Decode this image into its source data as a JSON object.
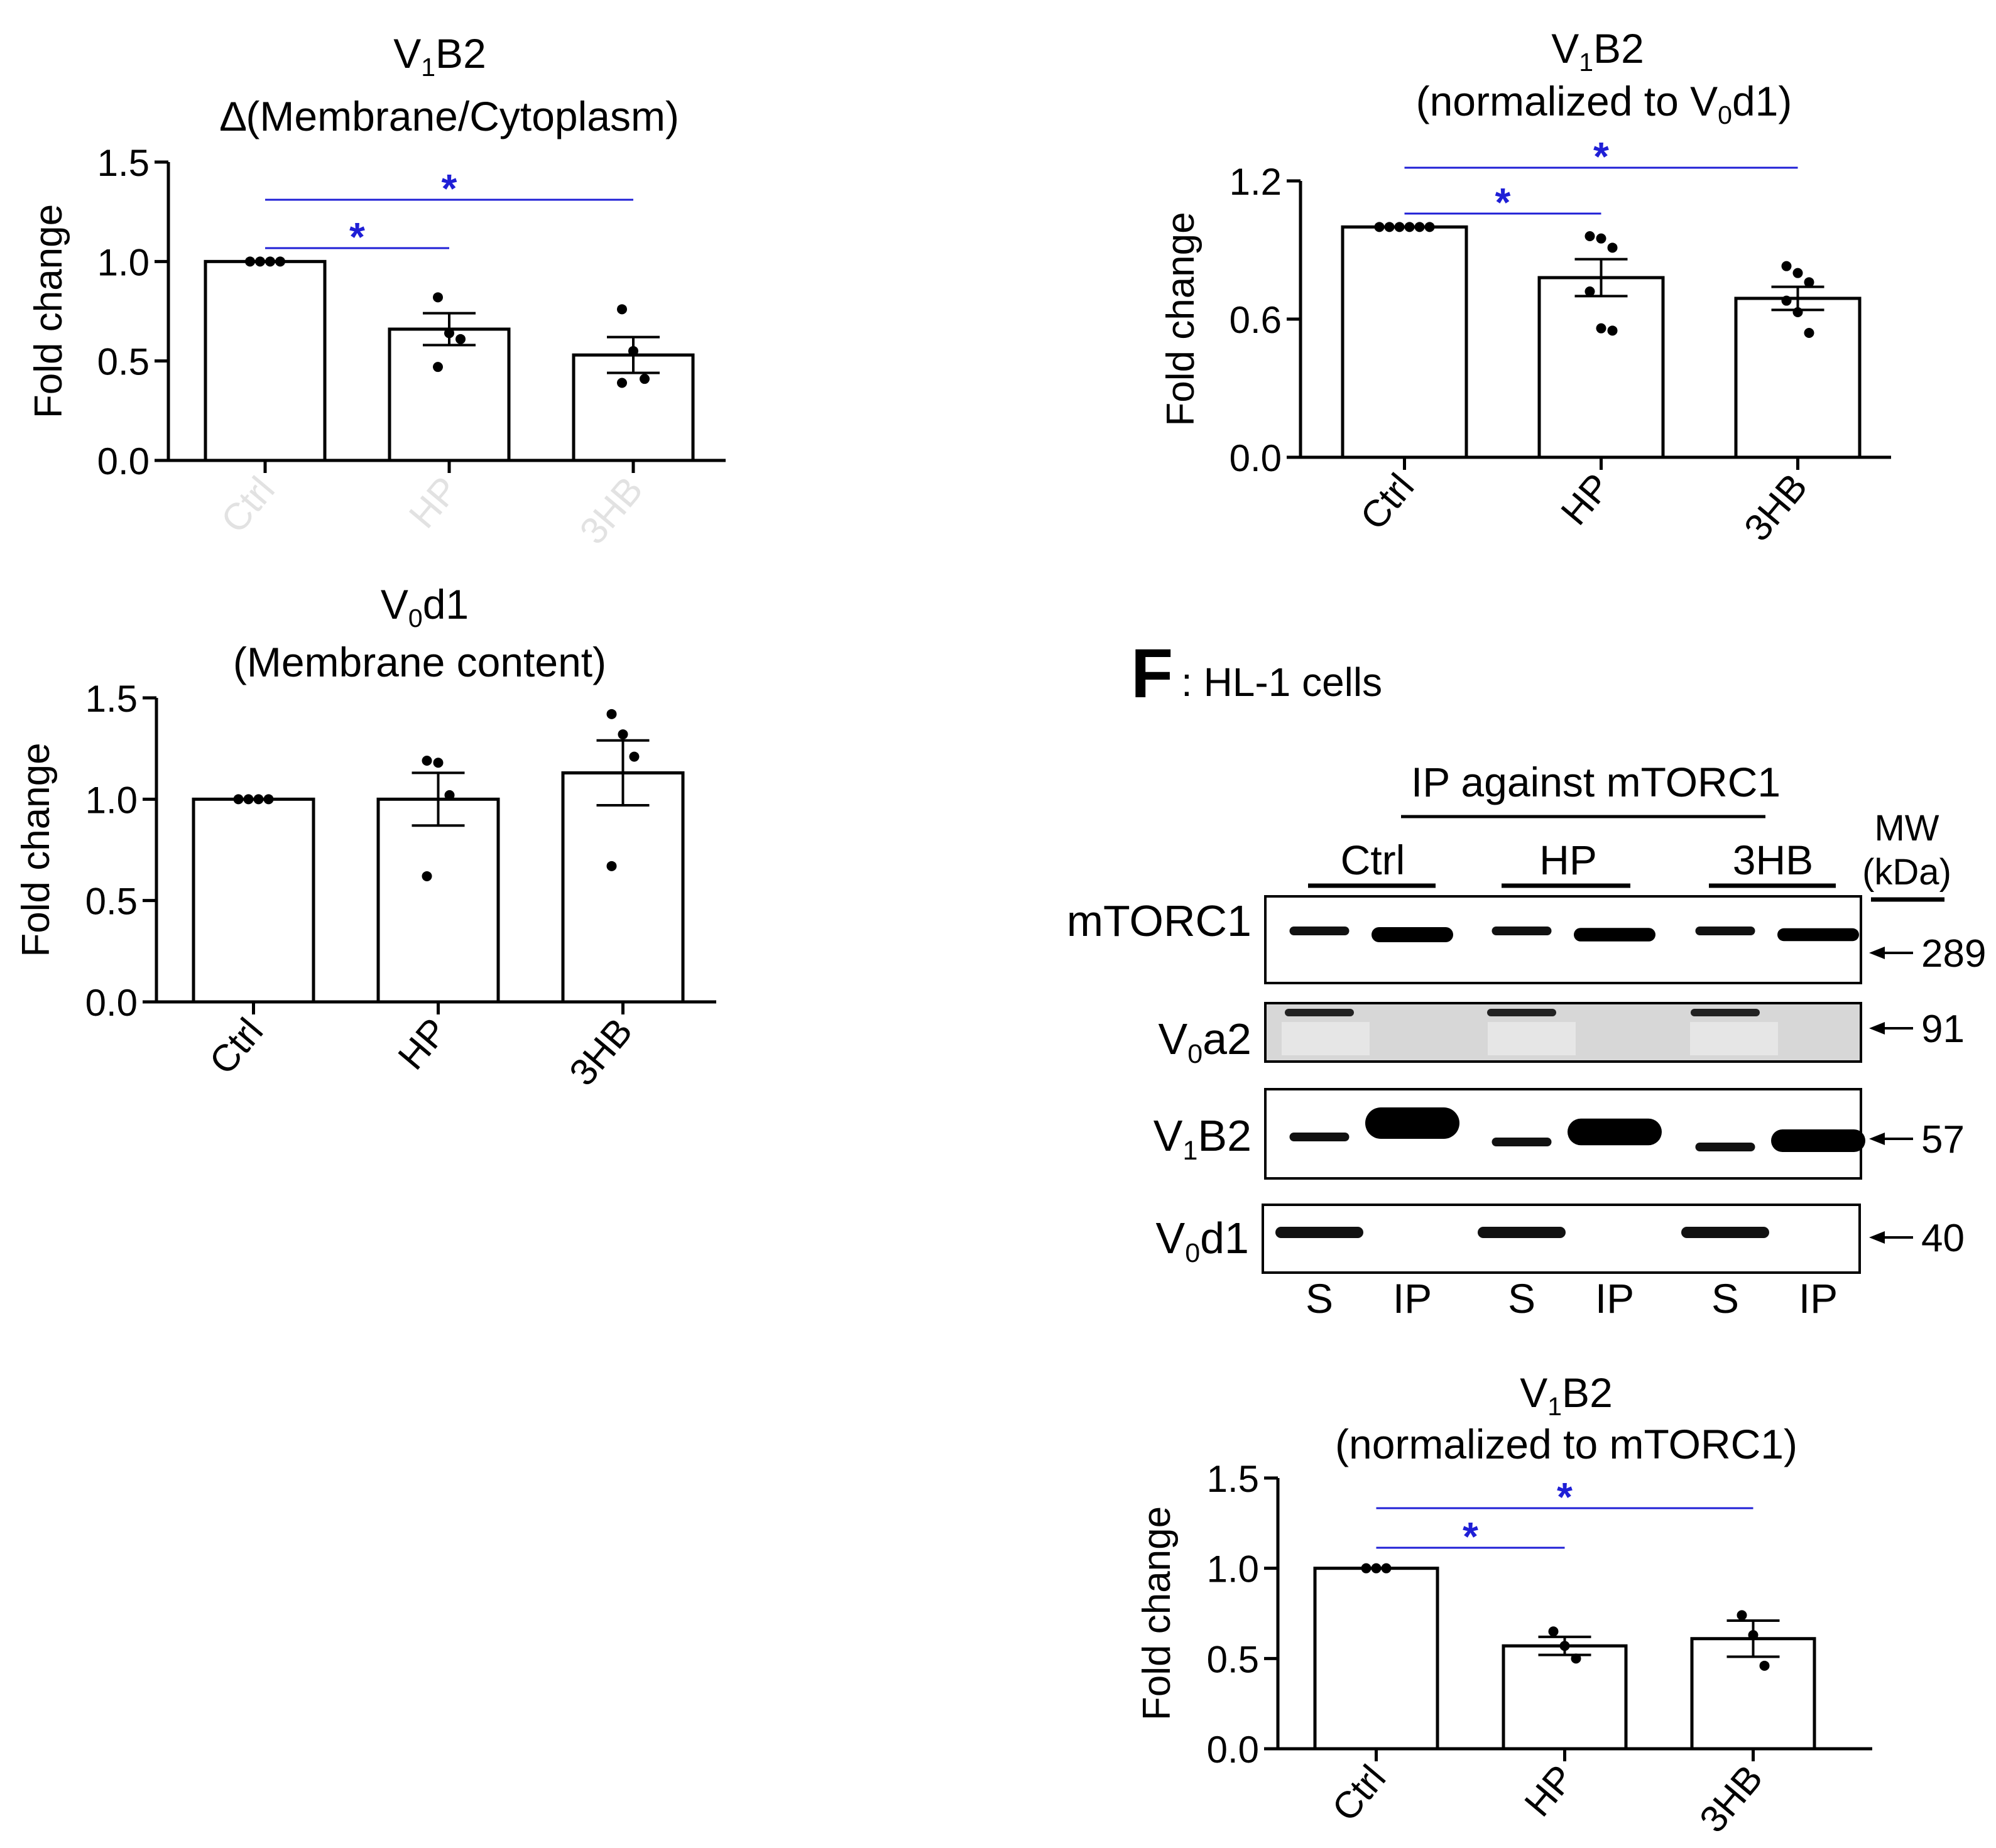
{
  "colors": {
    "significance": "#1f1fd6",
    "ink": "#000000",
    "bar_fill": "#ffffff",
    "ghost_tick": "#e2e2e2"
  },
  "chart_data": [
    {
      "id": "v1b2-membrane-cytoplasm",
      "type": "bar",
      "title": {
        "main": "V",
        "sub": "1",
        "rest": "B2"
      },
      "subtitle": "∆(Membrane/Cytoplasm)",
      "ylabel": "Fold change",
      "ylim": [
        0,
        1.5
      ],
      "yticks": [
        "0.0",
        "0.5",
        "1.0",
        "1.5"
      ],
      "categories": [
        "Ctrl",
        "HP",
        "3HB"
      ],
      "tick_labels_faint": true,
      "values": [
        1.0,
        0.66,
        0.53
      ],
      "sem": [
        0.0,
        0.08,
        0.09
      ],
      "points": [
        [
          1.0,
          1.0,
          1.0,
          1.0
        ],
        [
          0.82,
          0.64,
          0.61,
          0.47
        ],
        [
          0.76,
          0.55,
          0.41,
          0.39
        ]
      ],
      "significance": [
        {
          "from": "Ctrl",
          "to": "HP",
          "label": "*"
        },
        {
          "from": "Ctrl",
          "to": "3HB",
          "label": "*"
        }
      ]
    },
    {
      "id": "v1b2-normalized-v0d1",
      "type": "bar",
      "title": {
        "main": "V",
        "sub": "1",
        "rest": "B2"
      },
      "subtitle": {
        "main": "(normalized to V",
        "sub": "0",
        "rest": "d1)"
      },
      "ylabel": "Fold change",
      "ylim": [
        0,
        1.2
      ],
      "yticks": [
        "0.0",
        "0.6",
        "1.2"
      ],
      "categories": [
        "Ctrl",
        "HP",
        "3HB"
      ],
      "values": [
        1.0,
        0.78,
        0.69
      ],
      "sem": [
        0.0,
        0.08,
        0.05
      ],
      "points": [
        [
          1.0,
          1.0,
          1.0,
          1.0,
          1.0,
          1.0
        ],
        [
          0.96,
          0.95,
          0.91,
          0.72,
          0.56,
          0.55
        ],
        [
          0.83,
          0.8,
          0.76,
          0.68,
          0.63,
          0.54
        ]
      ],
      "significance": [
        {
          "from": "Ctrl",
          "to": "HP",
          "label": "*"
        },
        {
          "from": "Ctrl",
          "to": "3HB",
          "label": "*"
        }
      ]
    },
    {
      "id": "v0d1-membrane-content",
      "type": "bar",
      "title": {
        "main": "V",
        "sub": "0",
        "rest": "d1"
      },
      "subtitle": "(Membrane content)",
      "ylabel": "Fold change",
      "ylim": [
        0,
        1.5
      ],
      "yticks": [
        "0.0",
        "0.5",
        "1.0",
        "1.5"
      ],
      "categories": [
        "Ctrl",
        "HP",
        "3HB"
      ],
      "values": [
        1.0,
        1.0,
        1.13
      ],
      "sem": [
        0.0,
        0.13,
        0.16
      ],
      "points": [
        [
          1.0,
          1.0,
          1.0,
          1.0
        ],
        [
          1.19,
          1.18,
          1.02,
          0.62
        ],
        [
          1.42,
          1.32,
          1.21,
          0.67
        ]
      ],
      "significance": []
    },
    {
      "id": "v1b2-normalized-mtorc1",
      "type": "bar",
      "title": {
        "main": "V",
        "sub": "1",
        "rest": "B2"
      },
      "subtitle": "(normalized to mTORC1)",
      "ylabel": "Fold change",
      "ylim": [
        0,
        1.5
      ],
      "yticks": [
        "0.0",
        "0.5",
        "1.0",
        "1.5"
      ],
      "categories": [
        "Ctrl",
        "HP",
        "3HB"
      ],
      "values": [
        1.0,
        0.57,
        0.61
      ],
      "sem": [
        0.0,
        0.05,
        0.1
      ],
      "points": [
        [
          1.0,
          1.0,
          1.0
        ],
        [
          0.65,
          0.57,
          0.5
        ],
        [
          0.74,
          0.63,
          0.46
        ]
      ],
      "significance": [
        {
          "from": "Ctrl",
          "to": "HP",
          "label": "*"
        },
        {
          "from": "Ctrl",
          "to": "3HB",
          "label": "*"
        }
      ]
    }
  ],
  "blot": {
    "panel_letter": "F",
    "panel_title": ": HL-1 cells",
    "ip_header": "IP against mTORC1",
    "groups": [
      "Ctrl",
      "HP",
      "3HB"
    ],
    "mw_header": [
      "MW",
      "(kDa)"
    ],
    "rows": [
      {
        "label": {
          "main": "mTORC1",
          "sub": "",
          "rest": ""
        },
        "mw": "289"
      },
      {
        "label": {
          "main": "V",
          "sub": "0",
          "rest": "a2"
        },
        "mw": "91"
      },
      {
        "label": {
          "main": "V",
          "sub": "1",
          "rest": "B2"
        },
        "mw": "57"
      },
      {
        "label": {
          "main": "V",
          "sub": "0",
          "rest": "d1"
        },
        "mw": "40"
      }
    ],
    "lanes": [
      "S",
      "IP",
      "S",
      "IP",
      "S",
      "IP"
    ]
  }
}
